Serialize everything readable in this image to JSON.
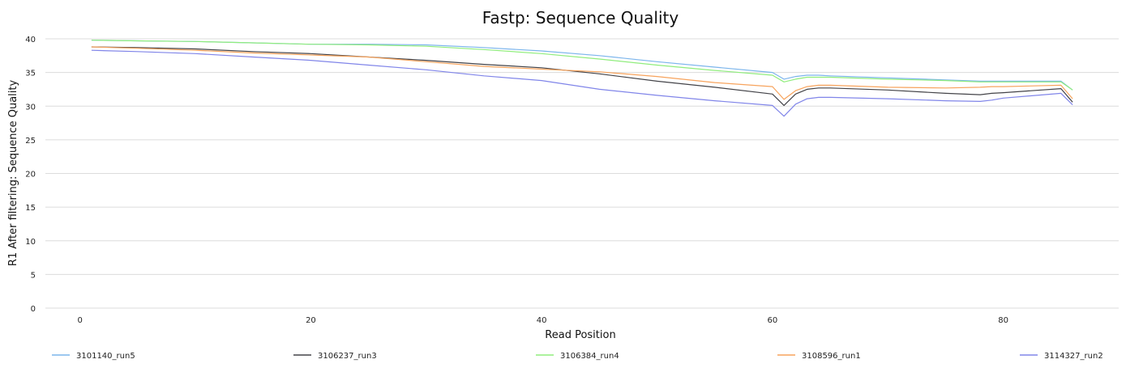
{
  "chart_data": {
    "type": "line",
    "title": "Fastp: Sequence Quality",
    "xlabel": "Read Position",
    "ylabel": "R1 After filtering: Sequence Quality",
    "xlim": [
      -3,
      90
    ],
    "ylim": [
      0,
      40
    ],
    "xticks": [
      0,
      20,
      40,
      60,
      80
    ],
    "yticks": [
      0,
      5,
      10,
      15,
      20,
      25,
      30,
      35,
      40
    ],
    "grid": "horizontal",
    "legend": "bottom",
    "x": [
      1,
      5,
      10,
      15,
      20,
      25,
      30,
      35,
      40,
      45,
      50,
      55,
      60,
      61,
      62,
      63,
      64,
      65,
      70,
      75,
      78,
      79,
      80,
      85,
      86
    ],
    "series": [
      {
        "name": "3101140_run5",
        "color": "#7cb5ec",
        "values": [
          39.8,
          39.7,
          39.6,
          39.4,
          39.2,
          39.2,
          39.1,
          38.7,
          38.2,
          37.5,
          36.6,
          35.8,
          35.0,
          34.0,
          34.4,
          34.6,
          34.6,
          34.5,
          34.2,
          33.9,
          33.7,
          33.7,
          33.7,
          33.7,
          32.4
        ]
      },
      {
        "name": "3106237_run3",
        "color": "#434348",
        "values": [
          38.8,
          38.7,
          38.5,
          38.1,
          37.8,
          37.3,
          36.8,
          36.2,
          35.7,
          34.8,
          33.7,
          32.8,
          31.8,
          30.1,
          31.8,
          32.5,
          32.7,
          32.7,
          32.4,
          31.9,
          31.7,
          31.9,
          32.0,
          32.6,
          30.6
        ]
      },
      {
        "name": "3106384_run4",
        "color": "#90ed7d",
        "values": [
          39.8,
          39.7,
          39.6,
          39.4,
          39.2,
          39.1,
          38.9,
          38.4,
          37.8,
          37.0,
          36.1,
          35.3,
          34.6,
          33.6,
          34.0,
          34.3,
          34.3,
          34.3,
          34.0,
          33.8,
          33.6,
          33.6,
          33.6,
          33.6,
          32.4
        ]
      },
      {
        "name": "3108596_run1",
        "color": "#f7a35c",
        "values": [
          38.8,
          38.6,
          38.3,
          37.9,
          37.6,
          37.3,
          36.6,
          35.9,
          35.5,
          35.1,
          34.4,
          33.5,
          32.9,
          31.0,
          32.3,
          32.9,
          33.1,
          33.1,
          32.8,
          32.7,
          32.8,
          32.9,
          32.9,
          33.1,
          31.1
        ]
      },
      {
        "name": "3114327_run2",
        "color": "#8085e9",
        "values": [
          38.3,
          38.1,
          37.8,
          37.3,
          36.8,
          36.1,
          35.4,
          34.5,
          33.8,
          32.5,
          31.6,
          30.8,
          30.1,
          28.5,
          30.3,
          31.1,
          31.3,
          31.3,
          31.1,
          30.8,
          30.7,
          30.9,
          31.2,
          31.9,
          30.2
        ]
      }
    ]
  }
}
